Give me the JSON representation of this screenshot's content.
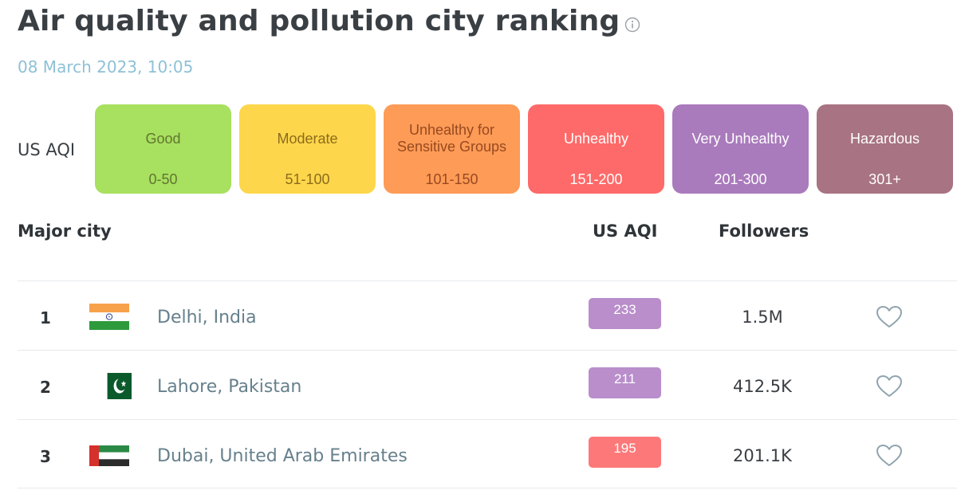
{
  "header": {
    "title": "Air quality and pollution city ranking",
    "timestamp": "08 March 2023, 10:05"
  },
  "legend": {
    "label": "US AQI",
    "levels": [
      {
        "name": "Good",
        "range": "0-50",
        "color": "#a8e05f",
        "text_color": "#607631"
      },
      {
        "name": "Moderate",
        "range": "51-100",
        "color": "#fdd64b",
        "text_color": "#8c6c1d"
      },
      {
        "name": "Unhealthy for Sensitive Groups",
        "range": "101-150",
        "color": "#fe9b57",
        "text_color": "#974a20"
      },
      {
        "name": "Unhealthy",
        "range": "151-200",
        "color": "#fe6a69",
        "text_color": "#ffffff"
      },
      {
        "name": "Very Unhealthy",
        "range": "201-300",
        "color": "#a97abc",
        "text_color": "#ffffff"
      },
      {
        "name": "Hazardous",
        "range": "301+",
        "color": "#a87383",
        "text_color": "#ffffff"
      }
    ]
  },
  "table": {
    "columns": {
      "city": "Major city",
      "aqi": "US AQI",
      "followers": "Followers"
    },
    "rows": [
      {
        "rank": "1",
        "flag": "india-flag-icon",
        "city": "Delhi, India",
        "aqi": "233",
        "aqi_color": "#b98ecb",
        "followers": "1.5M"
      },
      {
        "rank": "2",
        "flag": "pakistan-flag-icon",
        "city": "Lahore, Pakistan",
        "aqi": "211",
        "aqi_color": "#b98ecb",
        "followers": "412.5K"
      },
      {
        "rank": "3",
        "flag": "uae-flag-icon",
        "city": "Dubai, United Arab Emirates",
        "aqi": "195",
        "aqi_color": "#fd7979",
        "followers": "201.1K"
      }
    ]
  }
}
